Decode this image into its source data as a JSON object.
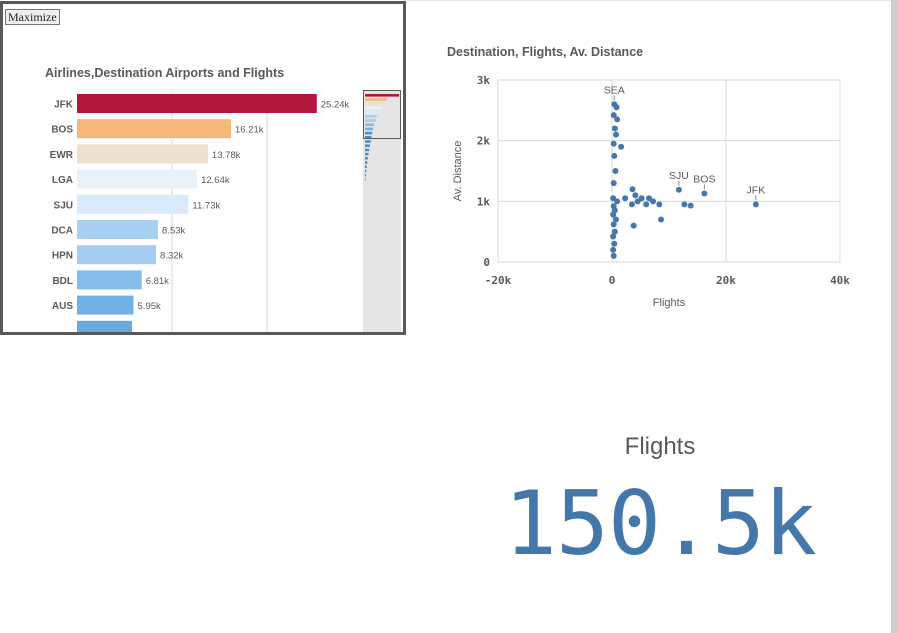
{
  "ui": {
    "maximize_label": "Maximize"
  },
  "bar_chart": {
    "title": "Airlines,Destination Airports and Flights",
    "chart_data": {
      "type": "bar",
      "orientation": "horizontal",
      "categories": [
        "JFK",
        "BOS",
        "EWR",
        "LGA",
        "SJU",
        "DCA",
        "HPN",
        "BDL",
        "AUS"
      ],
      "values": [
        25.24,
        16.21,
        13.78,
        12.64,
        11.73,
        8.53,
        8.32,
        6.81,
        5.95
      ],
      "value_labels": [
        "25.24k",
        "16.21k",
        "13.78k",
        "12.64k",
        "11.73k",
        "8.53k",
        "8.32k",
        "6.81k",
        "5.95k"
      ],
      "unit": "k flights",
      "xlim": [
        0,
        30
      ],
      "grid": true,
      "colors": [
        "#b0173a",
        "#f7b67a",
        "#efdfce",
        "#e8f2fb",
        "#dbeafa",
        "#a9d0f0",
        "#a4cdef",
        "#86bce8",
        "#73b0e3"
      ],
      "partial_bar_color": "#6aa9df"
    }
  },
  "scatter_chart": {
    "title": "Destination, Flights, Av. Distance",
    "chart_data": {
      "type": "scatter",
      "xlabel": "Flights",
      "ylabel": "Av. Distance",
      "xlim": [
        -20000,
        40000
      ],
      "ylim": [
        0,
        3000
      ],
      "x_ticks": [
        "-20k",
        "0",
        "20k",
        "40k"
      ],
      "y_ticks": [
        "0",
        "1k",
        "2k",
        "3k"
      ],
      "grid": true,
      "point_color": "#4477aa",
      "points": [
        {
          "x": 400,
          "y": 2600,
          "label": "SEA"
        },
        {
          "x": 800,
          "y": 2550
        },
        {
          "x": 300,
          "y": 2420
        },
        {
          "x": 900,
          "y": 2350
        },
        {
          "x": 500,
          "y": 2200
        },
        {
          "x": 700,
          "y": 2100
        },
        {
          "x": 300,
          "y": 1950
        },
        {
          "x": 1600,
          "y": 1900
        },
        {
          "x": 400,
          "y": 1750
        },
        {
          "x": 600,
          "y": 1500
        },
        {
          "x": 300,
          "y": 1300
        },
        {
          "x": 200,
          "y": 1050
        },
        {
          "x": 900,
          "y": 1000
        },
        {
          "x": 300,
          "y": 920
        },
        {
          "x": 500,
          "y": 850
        },
        {
          "x": 200,
          "y": 780
        },
        {
          "x": 700,
          "y": 700
        },
        {
          "x": 300,
          "y": 620
        },
        {
          "x": 500,
          "y": 500
        },
        {
          "x": 200,
          "y": 420
        },
        {
          "x": 400,
          "y": 300
        },
        {
          "x": 200,
          "y": 200
        },
        {
          "x": 300,
          "y": 100
        },
        {
          "x": 2300,
          "y": 1050
        },
        {
          "x": 3600,
          "y": 1200
        },
        {
          "x": 4100,
          "y": 1100
        },
        {
          "x": 3500,
          "y": 950
        },
        {
          "x": 4500,
          "y": 1000
        },
        {
          "x": 5200,
          "y": 1050
        },
        {
          "x": 6000,
          "y": 950
        },
        {
          "x": 6500,
          "y": 1050
        },
        {
          "x": 7200,
          "y": 1000
        },
        {
          "x": 8300,
          "y": 950
        },
        {
          "x": 8600,
          "y": 700
        },
        {
          "x": 3800,
          "y": 600
        },
        {
          "x": 11730,
          "y": 1190,
          "label": "SJU"
        },
        {
          "x": 12700,
          "y": 950
        },
        {
          "x": 13800,
          "y": 930
        },
        {
          "x": 16210,
          "y": 1130,
          "label": "BOS"
        },
        {
          "x": 25240,
          "y": 950,
          "label": "JFK"
        }
      ]
    }
  },
  "kpi": {
    "label": "Flights",
    "value": "150.5k"
  }
}
